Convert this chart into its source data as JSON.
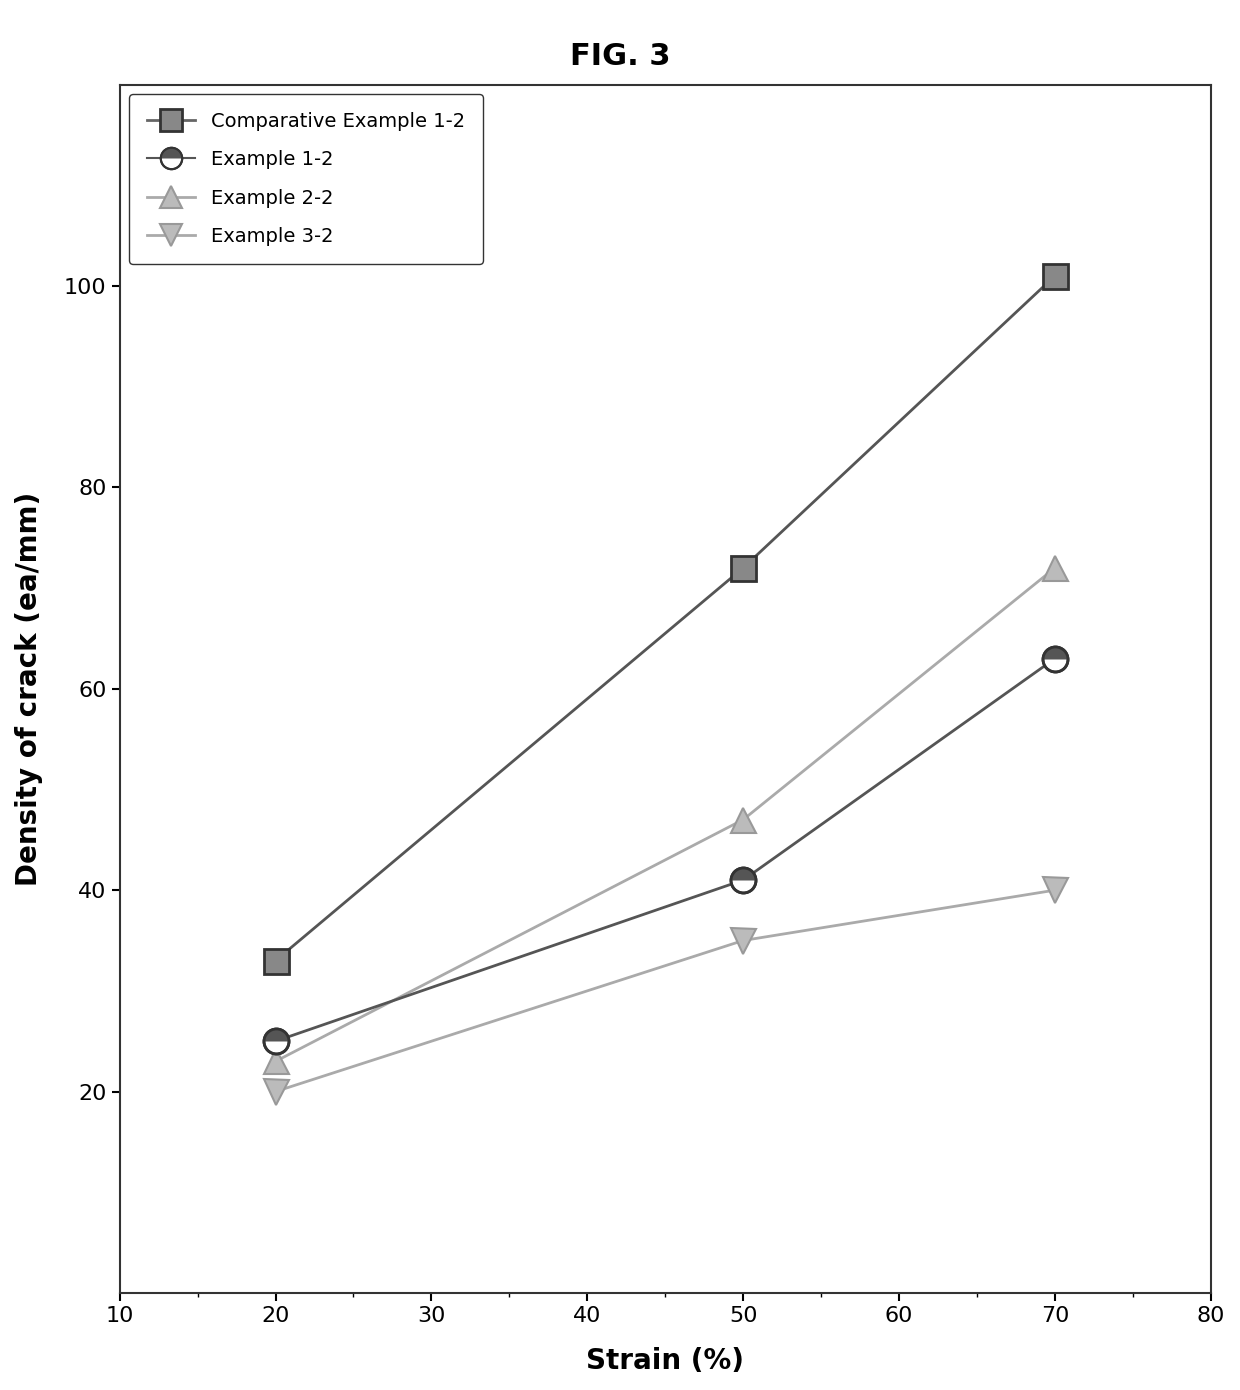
{
  "title": "FIG. 3",
  "xlabel": "Strain (%)",
  "ylabel": "Density of crack (ea/mm)",
  "xlim": [
    10,
    80
  ],
  "ylim": [
    0,
    120
  ],
  "xticks": [
    10,
    20,
    30,
    40,
    50,
    60,
    70,
    80
  ],
  "yticks": [
    20,
    40,
    60,
    80,
    100
  ],
  "series": [
    {
      "label": "Comparative Example 1-2",
      "x": [
        20,
        50,
        70
      ],
      "y": [
        33,
        72,
        101
      ],
      "color": "#555555",
      "marker": "s",
      "markersize": 18,
      "linewidth": 2.0,
      "zorder": 4
    },
    {
      "label": "Example 1-2",
      "x": [
        20,
        50,
        70
      ],
      "y": [
        25,
        41,
        63
      ],
      "color": "#555555",
      "marker": "o",
      "markersize": 18,
      "linewidth": 2.0,
      "zorder": 4
    },
    {
      "label": "Example 2-2",
      "x": [
        20,
        50,
        70
      ],
      "y": [
        23,
        47,
        72
      ],
      "color": "#aaaaaa",
      "marker": "^",
      "markersize": 18,
      "linewidth": 2.0,
      "zorder": 3
    },
    {
      "label": "Example 3-2",
      "x": [
        20,
        50,
        70
      ],
      "y": [
        20,
        35,
        40
      ],
      "color": "#aaaaaa",
      "marker": "v",
      "markersize": 18,
      "linewidth": 2.0,
      "zorder": 3
    }
  ],
  "background_color": "#ffffff",
  "legend_fontsize": 14,
  "axis_label_fontsize": 20,
  "tick_fontsize": 16,
  "title_fontsize": 22
}
